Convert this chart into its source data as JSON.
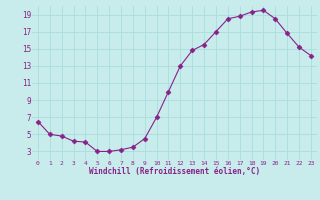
{
  "x": [
    0,
    1,
    2,
    3,
    4,
    5,
    6,
    7,
    8,
    9,
    10,
    11,
    12,
    13,
    14,
    15,
    16,
    17,
    18,
    19,
    20,
    21,
    22,
    23
  ],
  "y": [
    6.5,
    5.0,
    4.8,
    4.2,
    4.1,
    3.0,
    3.0,
    3.2,
    3.5,
    4.5,
    7.0,
    10.0,
    13.0,
    14.8,
    15.5,
    17.0,
    18.5,
    18.8,
    19.3,
    19.5,
    18.5,
    16.8,
    15.2,
    14.2
  ],
  "line_color": "#882288",
  "marker": "D",
  "marker_size": 2.5,
  "bg_color": "#c8ecec",
  "grid_color": "#aadddd",
  "xlabel": "Windchill (Refroidissement éolien,°C)",
  "xlabel_color": "#882288",
  "tick_color": "#882288",
  "ylim": [
    2,
    20
  ],
  "xlim": [
    -0.5,
    23.5
  ],
  "yticks": [
    3,
    5,
    7,
    9,
    11,
    13,
    15,
    17,
    19
  ],
  "xticks": [
    0,
    1,
    2,
    3,
    4,
    5,
    6,
    7,
    8,
    9,
    10,
    11,
    12,
    13,
    14,
    15,
    16,
    17,
    18,
    19,
    20,
    21,
    22,
    23
  ]
}
